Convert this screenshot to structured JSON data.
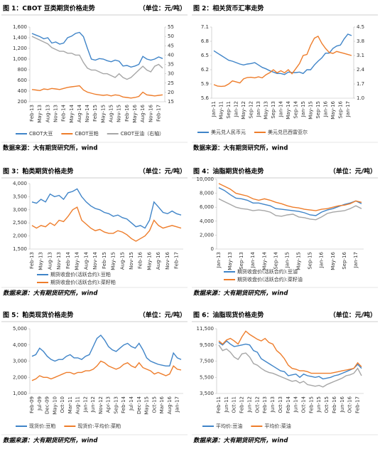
{
  "chart_data": [
    {
      "type": "line",
      "title": "图 1：CBOT 豆类期货价格走势",
      "unit": "（单位：元/吨）",
      "source": "数据来源：大有期货研究所，wind",
      "categories": [
        "Feb-13",
        null,
        "May-13",
        null,
        "Aug-13",
        null,
        "Nov-13",
        null,
        "Feb-14",
        null,
        "May-14",
        null,
        "Aug-14",
        null,
        "Nov-14",
        null,
        "Feb-15",
        null,
        "May-15",
        null,
        "Aug-15",
        null,
        "Nov-15",
        null,
        "Feb-16",
        null,
        "May-16",
        null,
        "Aug-16",
        null,
        "Nov-16",
        null,
        "Feb-17",
        null
      ],
      "series": [
        {
          "name": "CBOT大豆",
          "color": "#3f84c8",
          "values": [
            1480,
            1450,
            1420,
            1380,
            1400,
            1300,
            1320,
            1280,
            1300,
            1400,
            1430,
            1480,
            1500,
            1420,
            1200,
            1000,
            980,
            1010,
            1000,
            970,
            950,
            980,
            960,
            870,
            880,
            850,
            870,
            900,
            1050,
            1000,
            980,
            1000,
            1040,
            1010
          ]
        },
        {
          "name": "CBOT豆粕",
          "color": "#ee7d2b",
          "values": [
            430,
            420,
            410,
            440,
            430,
            450,
            440,
            430,
            450,
            470,
            480,
            490,
            500,
            420,
            380,
            360,
            340,
            330,
            320,
            330,
            310,
            330,
            320,
            290,
            280,
            270,
            280,
            300,
            380,
            330,
            320,
            310,
            320,
            330
          ]
        },
        {
          "name": "CBOT豆油（右轴）",
          "color": "#a6a6a6",
          "axis": "y2",
          "values": [
            50,
            49,
            48,
            47,
            46,
            44,
            43,
            42,
            42,
            41,
            41,
            40,
            40,
            36,
            33,
            32,
            32,
            31,
            30,
            30,
            29,
            28,
            30,
            28,
            27,
            28,
            30,
            32,
            34,
            32,
            31,
            34,
            35,
            33
          ]
        }
      ],
      "ylim": [
        200,
        1600
      ],
      "yticks": [
        200,
        400,
        600,
        800,
        {
          "value": 1000,
          "label": "1,000"
        },
        {
          "value": 1200,
          "label": "1,200"
        },
        {
          "value": 1400,
          "label": "1,400"
        },
        {
          "value": 1600,
          "label": "1,600"
        }
      ],
      "y2lim": [
        15,
        55
      ],
      "y2ticks": [
        15,
        20,
        25,
        30,
        35,
        40,
        45,
        50,
        55
      ]
    },
    {
      "type": "line",
      "title": "图 2：相关货币汇率走势",
      "source": "数据来源：大有期货研究所，wind",
      "categories": [
        "Jan-11",
        null,
        "May-11",
        null,
        "Sep-11",
        null,
        "Jan-12",
        null,
        "May-12",
        null,
        "Sep-12",
        null,
        "Jan-13",
        null,
        "May-13",
        null,
        "Sep-13",
        null,
        "Jan-14",
        null,
        "May-14",
        null,
        "Sep-14",
        null,
        "Jan-15",
        null,
        "May-15",
        null,
        "Sep-15",
        null,
        "Jan-16",
        null,
        "May-16",
        null,
        "Sep-16",
        null,
        "Jan-17",
        null
      ],
      "series": [
        {
          "name": "美元兑人民币元",
          "color": "#3f84c8",
          "values": [
            6.6,
            6.55,
            6.5,
            6.45,
            6.4,
            6.38,
            6.35,
            6.32,
            6.3,
            6.32,
            6.33,
            6.35,
            6.3,
            6.25,
            6.22,
            6.18,
            6.15,
            6.12,
            6.12,
            6.1,
            6.15,
            6.14,
            6.14,
            6.15,
            6.12,
            6.2,
            6.2,
            6.3,
            6.38,
            6.45,
            6.55,
            6.55,
            6.65,
            6.7,
            6.72,
            6.85,
            6.95,
            6.92
          ]
        },
        {
          "name": "美元兑巴西雷亚尔",
          "color": "#ee7d2b",
          "axis": "y2",
          "values": [
            1.67,
            1.6,
            1.58,
            1.6,
            1.7,
            1.85,
            1.8,
            1.75,
            1.95,
            2.02,
            2.03,
            2.0,
            2.05,
            2.0,
            2.15,
            2.25,
            2.4,
            2.25,
            2.35,
            2.25,
            2.4,
            2.2,
            2.45,
            2.7,
            3.1,
            3.15,
            3.6,
            3.95,
            4.05,
            3.7,
            3.45,
            3.25,
            3.2,
            3.3,
            3.25,
            3.2,
            3.15,
            3.1
          ]
        }
      ],
      "ylim": [
        5.6,
        7.1
      ],
      "yticks": [
        5.6,
        5.9,
        6.2,
        6.5,
        6.8,
        7.1
      ],
      "y2lim": [
        1,
        4.5
      ],
      "y2ticks": [
        {
          "value": 1,
          "label": "1.0"
        },
        1.7,
        2.4,
        3.1,
        3.8,
        4.5
      ]
    },
    {
      "type": "line",
      "title": "图 3：粕类期货价格走势",
      "unit": "（单位：元/吨）",
      "source": "数据来源：大有期货研究所，wind",
      "categories": [
        "Feb-13",
        null,
        "May-13",
        null,
        "Aug-13",
        null,
        "Nov-13",
        null,
        "Feb-14",
        null,
        "May-14",
        null,
        "Aug-14",
        null,
        "Nov-14",
        null,
        "Feb-15",
        null,
        "May-15",
        null,
        "Aug-15",
        null,
        "Nov-15",
        null,
        "Feb-16",
        null,
        "May-16",
        null,
        "Aug-16",
        null,
        "Nov-16",
        null,
        "Feb-17",
        null
      ],
      "series": [
        {
          "name": "期货收盘价(活跃合约):豆粕",
          "color": "#3f84c8",
          "values": [
            3300,
            3250,
            3400,
            3300,
            3600,
            3500,
            3550,
            3400,
            3650,
            3700,
            3800,
            3500,
            3300,
            3150,
            3050,
            3000,
            2900,
            2850,
            2750,
            2800,
            2700,
            2650,
            2500,
            2350,
            2400,
            2300,
            2600,
            3300,
            3100,
            2900,
            2850,
            2950,
            2850,
            2800
          ]
        },
        {
          "name": "期货收盘价(活跃合约):菜籽粕",
          "color": "#ee7d2b",
          "values": [
            2400,
            2300,
            2400,
            2350,
            2500,
            2400,
            2600,
            2550,
            2750,
            3000,
            3100,
            2600,
            2450,
            2300,
            2200,
            2250,
            2150,
            2100,
            2100,
            2200,
            2150,
            2050,
            1900,
            1800,
            1900,
            2000,
            2200,
            2600,
            2400,
            2300,
            2350,
            2400,
            2350,
            2300
          ]
        }
      ],
      "ylim": [
        1500,
        4000
      ],
      "yticks": [
        {
          "value": 1500,
          "label": "1,500"
        },
        {
          "value": 2000,
          "label": "2,000"
        },
        {
          "value": 2500,
          "label": "2,500"
        },
        {
          "value": 3000,
          "label": "3,000"
        },
        {
          "value": 3500,
          "label": "3,500"
        },
        {
          "value": 4000,
          "label": "4,000"
        }
      ]
    },
    {
      "type": "line",
      "title": "图 4：油脂期货价格走势",
      "unit": "（单位：元/吨）",
      "source": "数据来源：大有期货研究所，wind",
      "categories": [
        "Jan-13",
        null,
        "May-13",
        null,
        "Sep-13",
        null,
        "Jan-14",
        null,
        "May-14",
        null,
        "Sep-14",
        null,
        "Jan-15",
        null,
        "May-15",
        null,
        "Sep-15",
        null,
        "Jan-16",
        null,
        "May-16",
        null,
        "Sep-16",
        null,
        "Jan-17",
        null
      ],
      "series": [
        {
          "name": "期货收盘价(活跃合约):豆油",
          "color": "#3f84c8",
          "values": [
            8800,
            8400,
            7800,
            7300,
            7200,
            7000,
            6600,
            6600,
            6400,
            6200,
            5800,
            5700,
            5600,
            5500,
            5400,
            5200,
            4900,
            4800,
            5300,
            5600,
            5800,
            6100,
            6400,
            6600,
            6900,
            6500
          ]
        },
        {
          "name": "期货收盘价(活跃合约):菜籽油",
          "color": "#ee7d2b",
          "values": [
            9400,
            9000,
            8600,
            8000,
            7800,
            7600,
            7200,
            7000,
            7200,
            7000,
            6700,
            6500,
            6200,
            6000,
            5900,
            5700,
            5600,
            5500,
            5700,
            5800,
            6000,
            6200,
            6300,
            6500,
            6900,
            6700
          ]
        },
        {
          "color": "#a6a6a6",
          "values": [
            7200,
            6800,
            6400,
            6000,
            5800,
            5700,
            5500,
            5600,
            5500,
            5300,
            4800,
            4700,
            4900,
            5000,
            4600,
            4500,
            4300,
            4200,
            4600,
            5100,
            5300,
            5400,
            5500,
            5800,
            6200,
            5800
          ]
        }
      ],
      "ylim": [
        0,
        10000
      ],
      "yticks": [
        0,
        {
          "value": 2000,
          "label": "2,000"
        },
        {
          "value": 4000,
          "label": "4,000"
        },
        {
          "value": 6000,
          "label": "6,000"
        },
        {
          "value": 8000,
          "label": "8,000"
        },
        {
          "value": 10000,
          "label": "10,000"
        }
      ]
    },
    {
      "type": "line",
      "title": "图 5：粕类现货价格走势",
      "unit": "（单位：元/吨）",
      "source": "数据来源：大有期货研究所，wind",
      "categories": [
        "Feb-09",
        null,
        "Jul-09",
        null,
        "Dec-09",
        null,
        "May-10",
        null,
        "Oct-10",
        null,
        "Mar-11",
        null,
        "Aug-11",
        null,
        "Jan-12",
        null,
        "Jun-12",
        null,
        "Nov-12",
        null,
        "Apr-13",
        null,
        "Sep-13",
        null,
        "Feb-14",
        null,
        "Jul-14",
        null,
        "Dec-14",
        null,
        "May-15",
        null,
        "Oct-15",
        null,
        "Mar-16",
        null,
        "Aug-16",
        null,
        "Jan-17",
        null
      ],
      "series": [
        {
          "name": "现货价:豆粕",
          "color": "#3f84c8",
          "values": [
            3300,
            3400,
            3800,
            3600,
            3300,
            3100,
            3000,
            3100,
            3100,
            3300,
            3400,
            3200,
            3200,
            3100,
            3300,
            3400,
            3900,
            4400,
            4600,
            4300,
            3900,
            3700,
            3600,
            3800,
            4000,
            4100,
            3900,
            3800,
            4100,
            3700,
            3200,
            3000,
            2900,
            2800,
            2750,
            2700,
            2700,
            3500,
            3200,
            3100
          ]
        },
        {
          "name": "现货价:平均价:菜粕",
          "color": "#ee7d2b",
          "values": [
            1800,
            1900,
            2100,
            2000,
            2000,
            1900,
            2000,
            2100,
            2200,
            2300,
            2300,
            2200,
            2300,
            2300,
            2400,
            2400,
            2500,
            2700,
            3000,
            2900,
            2700,
            2600,
            2500,
            2600,
            2800,
            2900,
            2700,
            2600,
            2900,
            2600,
            2500,
            2400,
            2200,
            2300,
            2200,
            2100,
            2200,
            2700,
            2500,
            2450
          ]
        }
      ],
      "ylim": [
        1000,
        5000
      ],
      "yticks": [
        {
          "value": 1000,
          "label": "1,000"
        },
        {
          "value": 2000,
          "label": "2,000"
        },
        {
          "value": 3000,
          "label": "3,000"
        },
        {
          "value": 4000,
          "label": "4,000"
        },
        {
          "value": 5000,
          "label": "5,000"
        }
      ]
    },
    {
      "type": "line",
      "title": "图 6：油脂现货价格走势",
      "unit": "（单位：元/吨）",
      "source": "数据来源：大有期货研究所，wind",
      "categories": [
        "Feb-11",
        null,
        "Jun-11",
        null,
        "Oct-11",
        null,
        "Feb-12",
        null,
        "Jun-12",
        null,
        "Oct-12",
        null,
        "Feb-13",
        null,
        "Jun-13",
        null,
        "Oct-13",
        null,
        "Feb-14",
        null,
        "Jun-14",
        null,
        "Oct-14",
        null,
        "Feb-15",
        null,
        "Jun-15",
        null,
        "Oct-15",
        null,
        "Feb-16",
        null,
        "Jun-16",
        null,
        "Oct-16",
        null,
        "Feb-17",
        null
      ],
      "series": [
        {
          "name": "平均价:豆油",
          "color": "#3f84c8",
          "values": [
            9800,
            9500,
            10000,
            9600,
            9300,
            9400,
            9500,
            9600,
            9500,
            8800,
            8600,
            7800,
            7500,
            7200,
            6900,
            6600,
            6300,
            6200,
            5700,
            5800,
            5900,
            5500,
            5900,
            5700,
            5600,
            5500,
            5600,
            5300,
            5400,
            5500,
            5700,
            5800,
            6000,
            6200,
            6400,
            6600,
            7100,
            6600
          ]
        },
        {
          "name": "平均价:菜油",
          "color": "#ee7d2b",
          "values": [
            10000,
            9600,
            10100,
            10300,
            10000,
            9600,
            10500,
            11200,
            10800,
            10500,
            10200,
            10000,
            10300,
            9800,
            9600,
            8800,
            8400,
            7800,
            7000,
            6600,
            6500,
            6300,
            6300,
            6200,
            6000,
            6000,
            6000,
            6000,
            6000,
            6000,
            6100,
            6200,
            6300,
            6400,
            6500,
            6600,
            7300,
            6800
          ]
        },
        {
          "color": "#a6a6a6",
          "values": [
            9500,
            8800,
            9000,
            8600,
            8000,
            7700,
            8400,
            8500,
            8000,
            7200,
            7000,
            6600,
            6300,
            6100,
            6000,
            5800,
            5600,
            5400,
            5200,
            5000,
            5100,
            4800,
            5000,
            4600,
            4500,
            4400,
            4500,
            4300,
            4600,
            4800,
            5000,
            5200,
            5400,
            5700,
            5800,
            6000,
            6600,
            5700
          ]
        }
      ],
      "ylim": [
        3500,
        11500
      ],
      "yticks": [
        {
          "value": 3500,
          "label": "3,500"
        },
        {
          "value": 5500,
          "label": "5,500"
        },
        {
          "value": 7500,
          "label": "7,500"
        },
        {
          "value": 9500,
          "label": "9,500"
        },
        {
          "value": 11500,
          "label": "11,500"
        }
      ]
    }
  ]
}
